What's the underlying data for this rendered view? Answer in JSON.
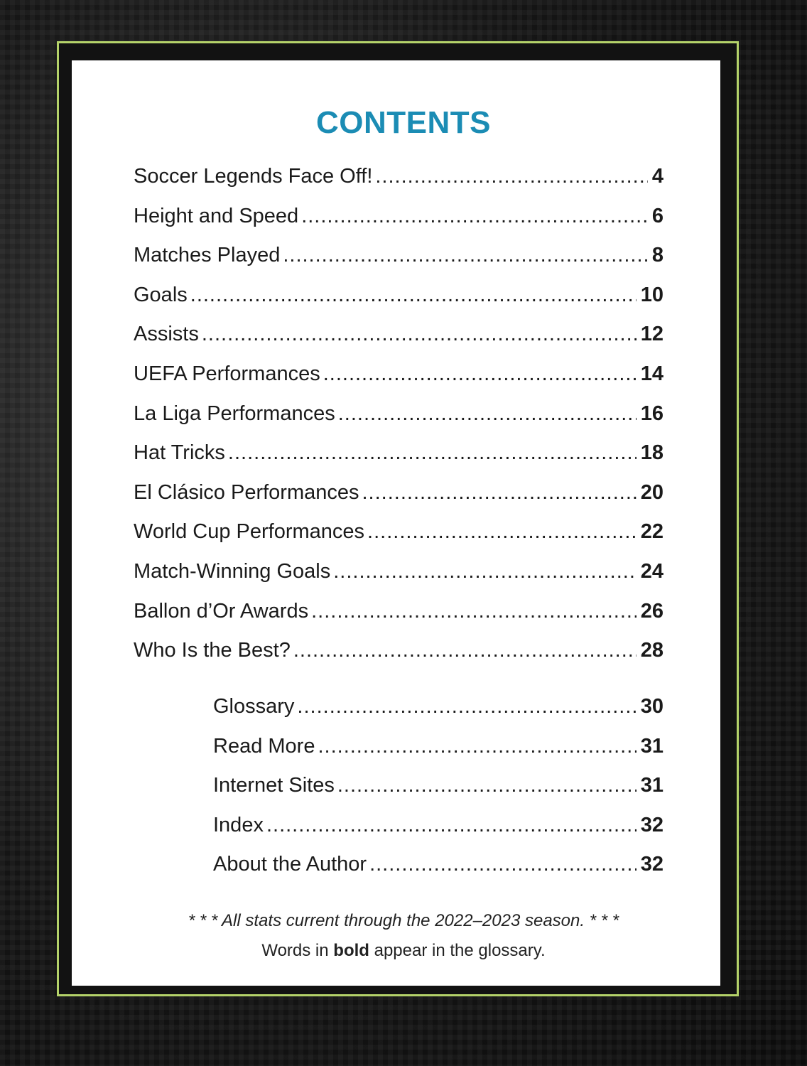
{
  "title": "CONTENTS",
  "entries": [
    {
      "label": "Soccer Legends Face Off!",
      "page": "4"
    },
    {
      "label": "Height and Speed",
      "page": "6"
    },
    {
      "label": "Matches Played",
      "page": "8"
    },
    {
      "label": "Goals",
      "page": "10"
    },
    {
      "label": "Assists",
      "page": "12"
    },
    {
      "label": "UEFA Performances",
      "page": "14"
    },
    {
      "label": "La Liga Performances",
      "page": "16"
    },
    {
      "label": "Hat Tricks",
      "page": "18"
    },
    {
      "label": "El Clásico Performances",
      "page": "20"
    },
    {
      "label": "World Cup Performances",
      "page": "22"
    },
    {
      "label": "Match-Winning Goals",
      "page": "24"
    },
    {
      "label": "Ballon d’Or Awards",
      "page": "26"
    },
    {
      "label": "Who Is the Best?",
      "page": "28"
    }
  ],
  "back_matter": [
    {
      "label": "Glossary",
      "page": "30"
    },
    {
      "label": "Read More",
      "page": "31"
    },
    {
      "label": "Internet Sites",
      "page": "31"
    },
    {
      "label": "Index",
      "page": "32"
    },
    {
      "label": "About the Author",
      "page": "32"
    }
  ],
  "notes": {
    "stats": "* * * All stats current through the 2022–2023 season. * * *",
    "bold_pre": "Words in ",
    "bold_word": "bold",
    "bold_post": " appear in the glossary."
  },
  "colors": {
    "accent": "#1b8cb4",
    "frame": "#b5d36a"
  }
}
